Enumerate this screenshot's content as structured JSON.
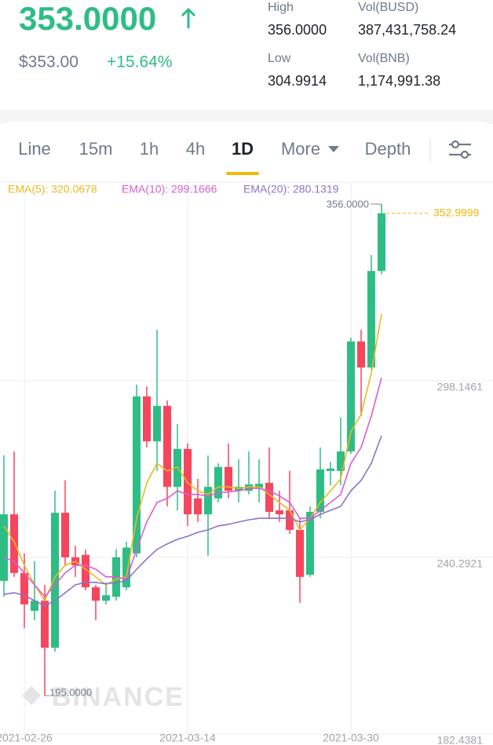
{
  "header": {
    "price": "353.0000",
    "fiat": "$353.00",
    "change": "+15.64%",
    "stats": [
      {
        "label": "High",
        "value": "356.0000"
      },
      {
        "label": "Vol(BUSD)",
        "value": "387,431,758.24"
      },
      {
        "label": "Low",
        "value": "304.9914"
      },
      {
        "label": "Vol(BNB)",
        "value": "1,174,991.38"
      }
    ]
  },
  "tabs": [
    "Line",
    "15m",
    "1h",
    "4h",
    "1D",
    "More",
    "Depth"
  ],
  "watermark": "BINANCE",
  "chart_data": {
    "type": "candlestick",
    "x": [
      null,
      null,
      "2021-02-26",
      null,
      null,
      null,
      null,
      null,
      null,
      null,
      null,
      null,
      null,
      null,
      null,
      null,
      null,
      null,
      "2021-03-14",
      null,
      null,
      null,
      null,
      null,
      null,
      null,
      null,
      null,
      null,
      null,
      null,
      null,
      null,
      null,
      "2021-03-30",
      null,
      null,
      null
    ],
    "open": [
      232.6,
      254.4,
      235.2,
      222.8,
      226.1,
      210.7,
      254.9,
      240.3,
      241.1,
      230.5,
      226.1,
      227.4,
      230.5,
      241.6,
      293.0,
      278.3,
      289.9,
      263.4,
      275.8,
      259.6,
      254.4,
      259.6,
      269.9,
      262.1,
      262.1,
      263.1,
      264.7,
      255.7,
      255.7,
      249.3,
      234.6,
      255.2,
      268.6,
      268.6,
      275.0,
      311.0,
      302.5,
      334.1
    ],
    "high": [
      273.7,
      275.0,
      241.6,
      239.0,
      231.3,
      262.1,
      265.5,
      244.1,
      242.9,
      231.3,
      232.1,
      242.9,
      245.4,
      296.9,
      296.3,
      314.9,
      291.7,
      284.0,
      277.6,
      266.0,
      273.7,
      271.1,
      277.6,
      272.4,
      275.0,
      272.4,
      276.3,
      262.1,
      268.6,
      253.1,
      257.0,
      276.3,
      271.6,
      286.1,
      312.3,
      314.9,
      339.3,
      356.0
    ],
    "low": [
      227.4,
      233.9,
      217.1,
      219.7,
      195.0,
      209.4,
      237.7,
      233.9,
      229.5,
      219.7,
      224.9,
      226.1,
      229.5,
      240.3,
      276.3,
      268.6,
      257.0,
      255.7,
      250.6,
      251.9,
      240.8,
      258.3,
      259.6,
      258.3,
      260.9,
      258.3,
      253.1,
      251.9,
      248.0,
      225.4,
      233.9,
      253.1,
      263.9,
      263.9,
      274.2,
      286.6,
      302.0,
      333.0
    ],
    "close": [
      254.4,
      235.2,
      224.9,
      226.1,
      210.7,
      254.9,
      240.3,
      237.7,
      230.5,
      226.1,
      227.9,
      240.3,
      243.5,
      293.0,
      278.3,
      289.9,
      263.4,
      275.8,
      254.4,
      254.4,
      263.4,
      269.9,
      262.1,
      263.4,
      264.2,
      264.4,
      255.2,
      254.4,
      249.3,
      233.9,
      255.2,
      269.1,
      269.4,
      275.0,
      311.0,
      302.5,
      334.1,
      352.9999
    ],
    "up_color": "#2ebd85",
    "down_color": "#f6465d",
    "series": [
      {
        "name": "EMA(5): 320.0678",
        "color": "#e8b923",
        "values": [
          250.6,
          245.4,
          237.7,
          231.3,
          226.1,
          233.9,
          237.7,
          239.0,
          236.4,
          233.9,
          231.3,
          233.1,
          233.9,
          253.1,
          264.7,
          271.1,
          268.6,
          269.9,
          264.7,
          262.1,
          260.9,
          263.4,
          263.4,
          262.9,
          263.4,
          263.4,
          260.9,
          258.3,
          255.7,
          249.3,
          253.1,
          258.3,
          262.1,
          266.0,
          281.4,
          287.1,
          300.7,
          320.0678
        ]
      },
      {
        "name": "EMA(10): 299.1666",
        "color": "#d85fcf",
        "values": [
          240.3,
          239.0,
          235.2,
          231.3,
          227.4,
          231.3,
          235.2,
          237.7,
          237.7,
          236.4,
          233.9,
          233.9,
          233.1,
          242.9,
          251.9,
          258.3,
          259.6,
          262.1,
          260.9,
          260.9,
          260.4,
          261.4,
          261.7,
          262.1,
          262.9,
          262.9,
          262.1,
          260.4,
          258.3,
          253.1,
          253.1,
          255.7,
          258.3,
          260.9,
          271.1,
          276.3,
          286.6,
          299.1666
        ]
      },
      {
        "name": "EMA(20): 280.1319",
        "color": "#8c73c8",
        "values": [
          228.2,
          228.7,
          227.9,
          226.1,
          224.4,
          226.1,
          228.7,
          231.3,
          232.1,
          232.1,
          231.6,
          232.1,
          232.6,
          236.4,
          239.8,
          242.9,
          244.7,
          246.2,
          247.2,
          248.5,
          249.3,
          250.6,
          251.1,
          251.9,
          252.6,
          253.1,
          253.1,
          253.1,
          253.1,
          251.9,
          252.6,
          254.4,
          255.7,
          257.0,
          262.1,
          265.5,
          271.1,
          280.1319
        ]
      }
    ],
    "ylim": [
      182.4381,
      363.2
    ],
    "yticks": [
      182.4381,
      240.2921,
      298.1461
    ],
    "grid": true,
    "high_marker": {
      "value": 356,
      "label": "356.0000"
    },
    "low_marker": {
      "value": 195,
      "label": "195.0000"
    },
    "last_price": {
      "value": 352.9999,
      "label": "352.9999",
      "color": "#f0b90b"
    }
  }
}
